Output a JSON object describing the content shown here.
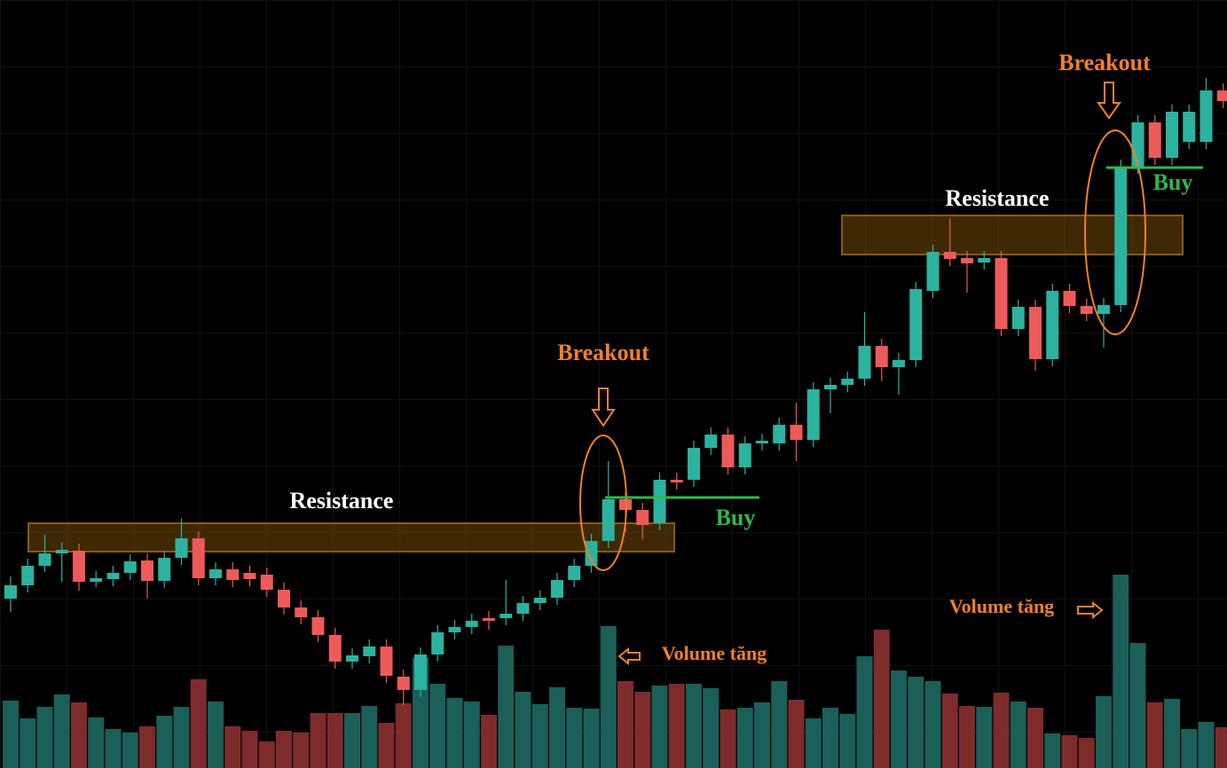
{
  "chart_data": {
    "type": "candlestick",
    "up_color": "#2bb3a0",
    "down_color": "#ee5a5a",
    "volume_up_color": "#1b5f59",
    "volume_down_color": "#7e2b2c",
    "ylim": [
      0,
      866
    ],
    "y2lim": [
      0,
      866
    ],
    "open": [
      191,
      206,
      228,
      242,
      245,
      210,
      213,
      220,
      234,
      211,
      237,
      259,
      214,
      224,
      220,
      218,
      201,
      181,
      170,
      150,
      120,
      126,
      137,
      103,
      88,
      128,
      153,
      159,
      169,
      169,
      174,
      186,
      192,
      212,
      228,
      256,
      303,
      291,
      276,
      325,
      325,
      361,
      376,
      339,
      366,
      366,
      387,
      370,
      427,
      432,
      439,
      476,
      452,
      460,
      538,
      582,
      575,
      570,
      575,
      495,
      520,
      461,
      538,
      521,
      512,
      522,
      678,
      728,
      688,
      706,
      706,
      764
    ],
    "high": [
      216,
      236,
      263,
      254,
      253,
      222,
      228,
      241,
      242,
      245,
      281,
      267,
      232,
      232,
      228,
      226,
      209,
      189,
      178,
      158,
      135,
      145,
      145,
      111,
      136,
      161,
      167,
      174,
      177,
      212,
      194,
      200,
      220,
      236,
      264,
      346,
      311,
      299,
      333,
      333,
      369,
      384,
      384,
      374,
      377,
      395,
      412,
      435,
      440,
      447,
      514,
      484,
      468,
      548,
      590,
      620,
      583,
      583,
      583,
      528,
      528,
      546,
      546,
      529,
      530,
      686,
      736,
      736,
      748,
      748,
      778,
      772
    ],
    "low": [
      176,
      198,
      221,
      210,
      200,
      204,
      205,
      212,
      191,
      203,
      229,
      206,
      206,
      204,
      205,
      193,
      173,
      162,
      142,
      112,
      112,
      118,
      96,
      71,
      80,
      120,
      145,
      151,
      156,
      161,
      166,
      178,
      184,
      204,
      220,
      248,
      266,
      258,
      268,
      314,
      317,
      353,
      331,
      331,
      358,
      358,
      346,
      362,
      400,
      424,
      431,
      436,
      421,
      452,
      530,
      566,
      536,
      562,
      487,
      487,
      448,
      453,
      513,
      504,
      474,
      514,
      670,
      680,
      680,
      698,
      698,
      744
    ],
    "close": [
      206,
      228,
      242,
      246,
      210,
      214,
      220,
      233,
      211,
      237,
      259,
      214,
      224,
      212,
      213,
      201,
      181,
      170,
      150,
      120,
      127,
      137,
      104,
      88,
      128,
      153,
      159,
      166,
      166,
      174,
      186,
      192,
      212,
      228,
      256,
      303,
      291,
      274,
      325,
      322,
      361,
      376,
      339,
      366,
      369,
      387,
      370,
      427,
      432,
      439,
      476,
      452,
      460,
      540,
      582,
      574,
      569,
      575,
      495,
      520,
      461,
      538,
      521,
      512,
      522,
      678,
      728,
      688,
      740,
      740,
      764,
      752
    ],
    "volume": [
      76,
      56,
      69,
      83,
      74,
      57,
      44,
      40,
      47,
      59,
      69,
      100,
      75,
      47,
      42,
      30,
      42,
      40,
      62,
      62,
      62,
      70,
      51,
      73,
      124,
      95,
      79,
      75,
      60,
      138,
      86,
      72,
      91,
      68,
      67,
      160,
      98,
      86,
      93,
      95,
      95,
      90,
      66,
      68,
      74,
      98,
      77,
      56,
      68,
      61,
      126,
      156,
      110,
      103,
      98,
      84,
      70,
      69,
      85,
      75,
      68,
      39,
      37,
      34,
      81,
      218,
      141,
      74,
      78,
      44,
      52,
      46
    ],
    "annotations": [
      "Resistance",
      "Breakout",
      "Buy",
      "Volume tăng",
      "Resistance",
      "Breakout",
      "Buy",
      "Volume tăng"
    ]
  }
}
